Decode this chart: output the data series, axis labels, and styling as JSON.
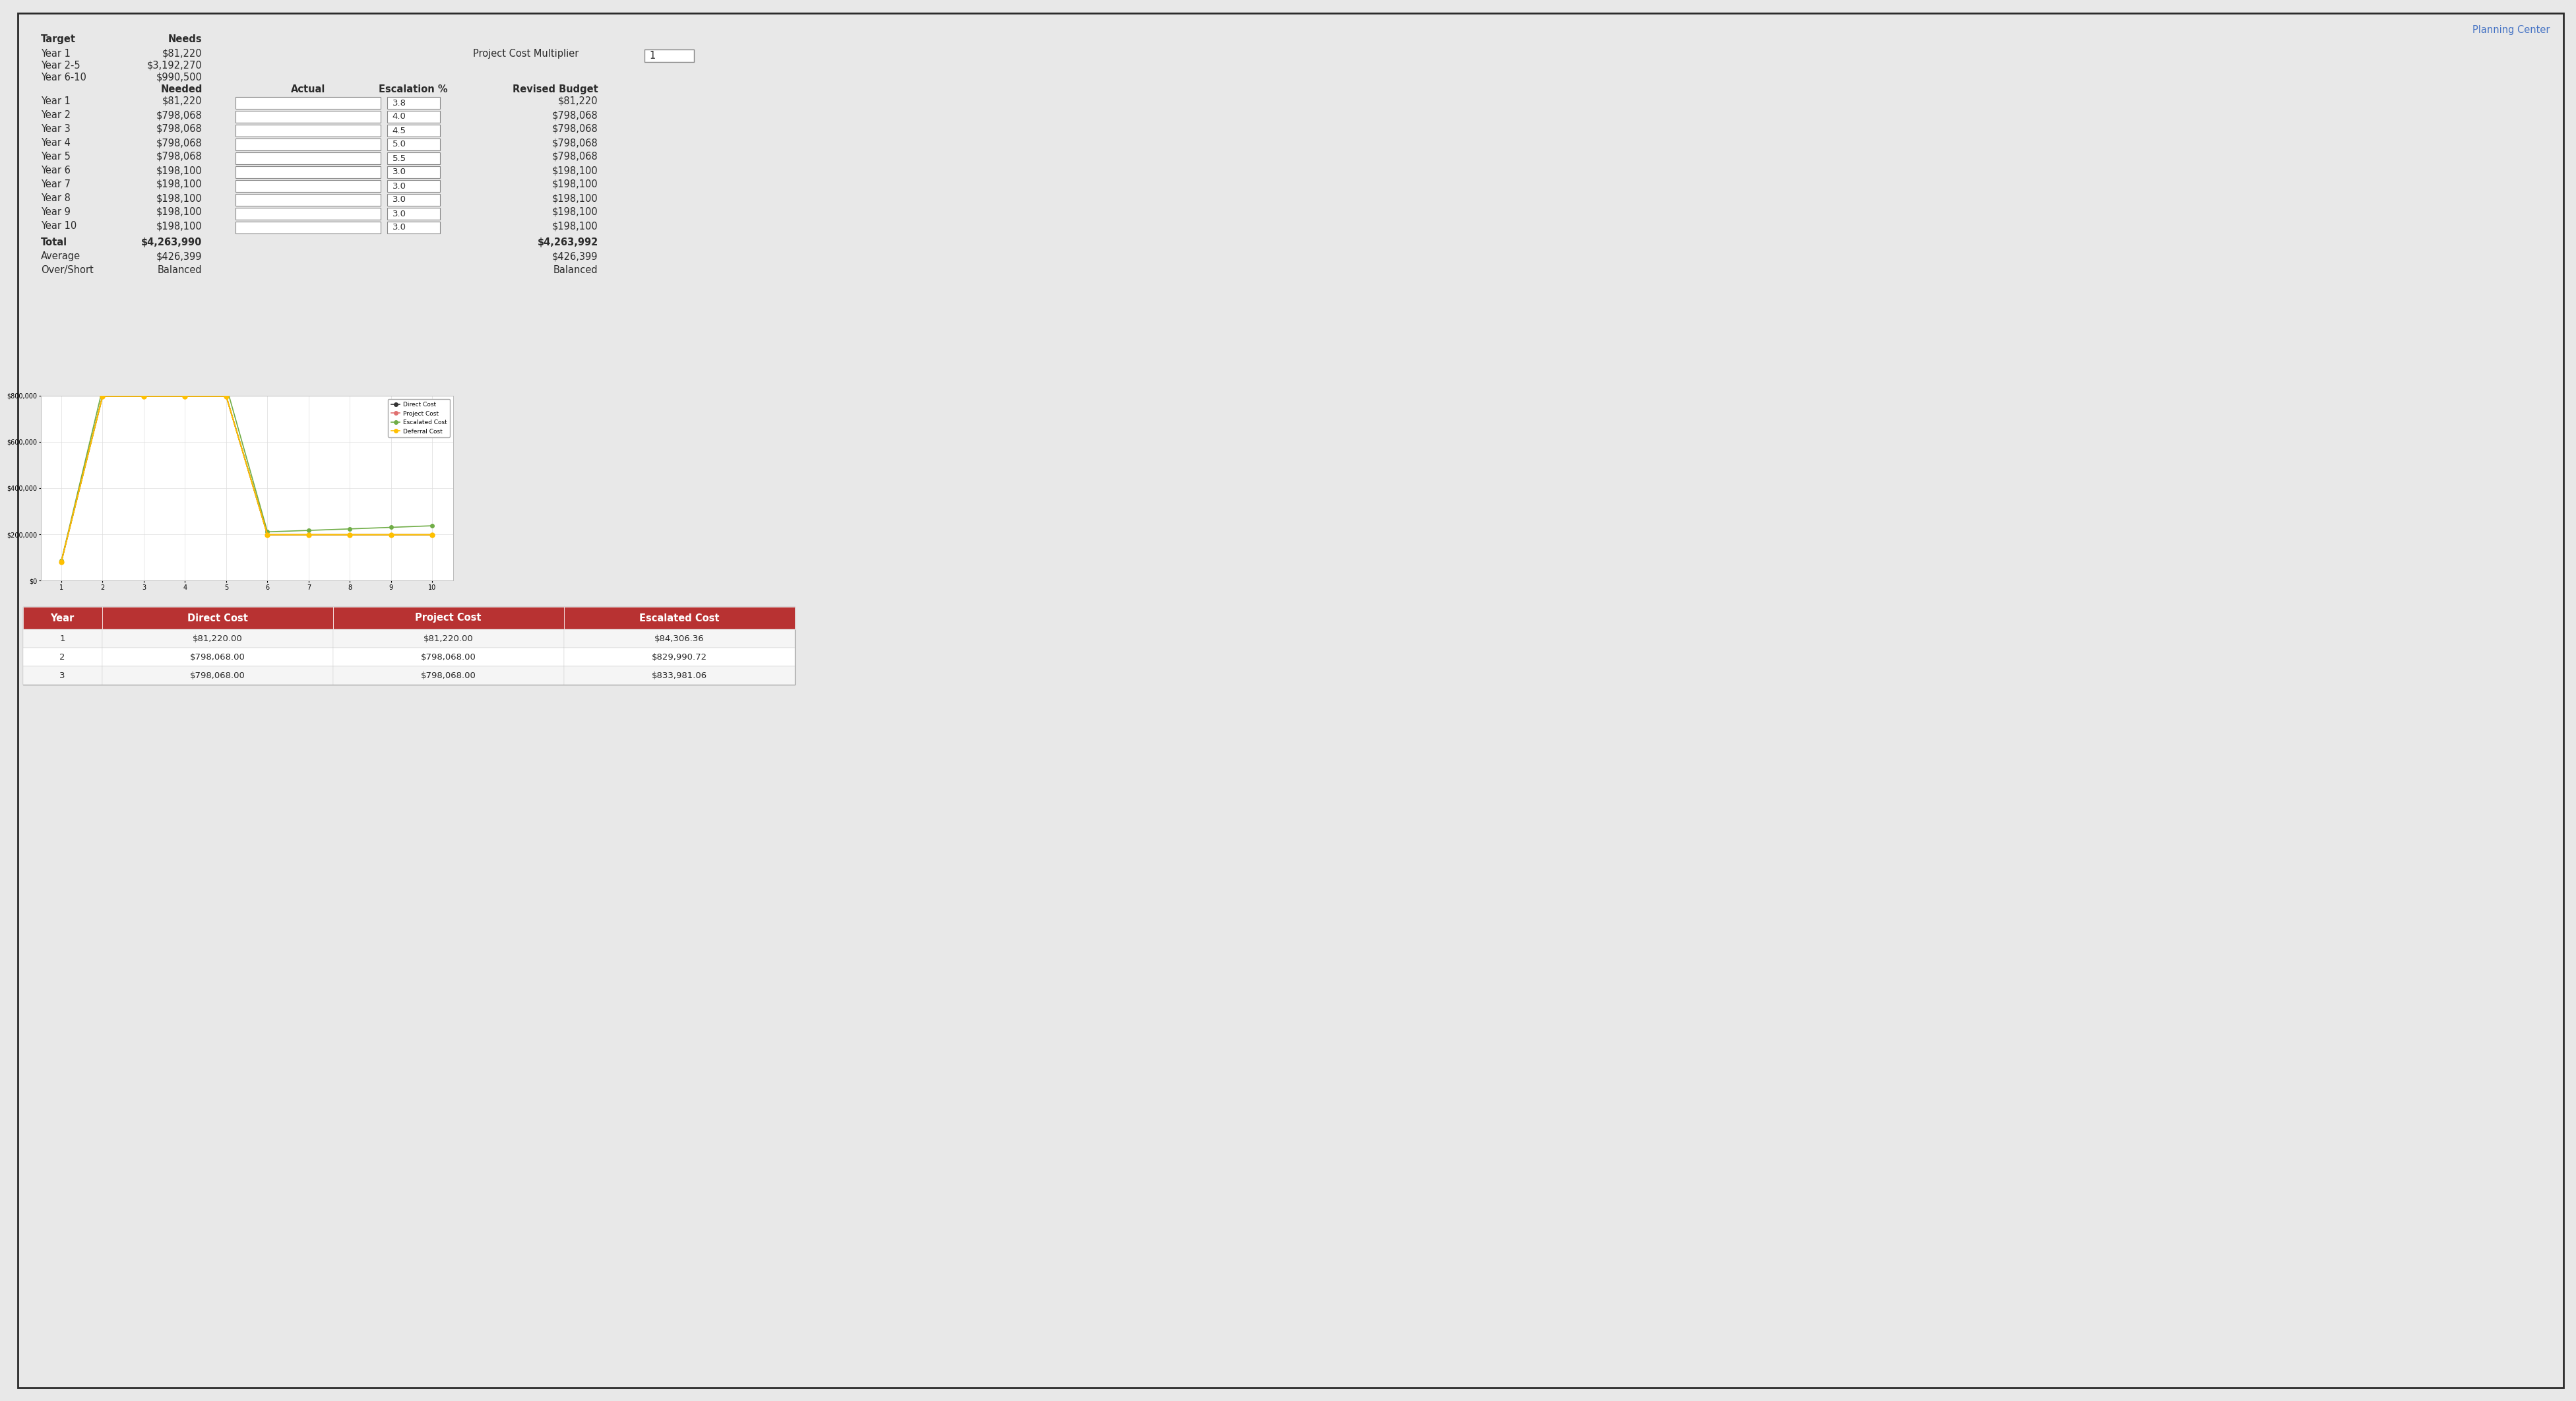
{
  "bg_color": "#e8e8e8",
  "border_color": "#2b2b2b",
  "text_color": "#2b2b2b",
  "planning_center_color": "#4472c4",
  "planning_center_text": "Planning Center",
  "top_label1": "Target",
  "top_label2": "Needs",
  "top_rows": [
    [
      "Year 1",
      "$81,220"
    ],
    [
      "Year 2-5",
      "$3,192,270"
    ],
    [
      "Year 6-10",
      "$990,500"
    ]
  ],
  "pcm_label": "Project Cost Multiplier",
  "pcm_value": "1",
  "mid_header_needed": "Needed",
  "mid_header_actual": "Actual",
  "mid_header_esc": "Escalation %",
  "mid_header_revised": "Revised Budget",
  "mid_rows": [
    [
      "Year 1",
      "$81,220",
      "3.8",
      "$81,220"
    ],
    [
      "Year 2",
      "$798,068",
      "4.0",
      "$798,068"
    ],
    [
      "Year 3",
      "$798,068",
      "4.5",
      "$798,068"
    ],
    [
      "Year 4",
      "$798,068",
      "5.0",
      "$798,068"
    ],
    [
      "Year 5",
      "$798,068",
      "5.5",
      "$798,068"
    ],
    [
      "Year 6",
      "$198,100",
      "3.0",
      "$198,100"
    ],
    [
      "Year 7",
      "$198,100",
      "3.0",
      "$198,100"
    ],
    [
      "Year 8",
      "$198,100",
      "3.0",
      "$198,100"
    ],
    [
      "Year 9",
      "$198,100",
      "3.0",
      "$198,100"
    ],
    [
      "Year 10",
      "$198,100",
      "3.0",
      "$198,100"
    ]
  ],
  "total_row": [
    "Total",
    "$4,263,990",
    "$4,263,992"
  ],
  "avg_row": [
    "Average",
    "$426,399",
    "$426,399"
  ],
  "over_row": [
    "Over/Short",
    "Balanced",
    "Balanced"
  ],
  "chart_x": [
    1,
    2,
    3,
    4,
    5,
    6,
    7,
    8,
    9,
    10
  ],
  "direct_cost": [
    81220,
    798068,
    798068,
    798068,
    798068,
    198100,
    198100,
    198100,
    198100,
    198100
  ],
  "project_cost": [
    81220,
    798068,
    798068,
    798068,
    798068,
    198100,
    198100,
    198100,
    198100,
    198100
  ],
  "escalated_cost": [
    84306,
    829991,
    833981,
    837971,
    841962,
    210486,
    216801,
    223305,
    230004,
    236904
  ],
  "deferral_cost": [
    81220,
    798068,
    798068,
    798068,
    798068,
    198100,
    198100,
    198100,
    198100,
    198100
  ],
  "direct_color": "#333333",
  "project_color": "#e07070",
  "escalated_color": "#70ad47",
  "deferral_color": "#ffc000",
  "chart_yticks": [
    0,
    200000,
    400000,
    600000,
    800000
  ],
  "chart_ytick_labels": [
    "$0",
    "$200,000",
    "$400,000",
    "$600,000",
    "$800,000"
  ],
  "bt_header_bg": "#b83232",
  "bt_header_color": "#ffffff",
  "bt_headers": [
    "Year",
    "Direct Cost",
    "Project Cost",
    "Escalated Cost"
  ],
  "bt_rows": [
    [
      "1",
      "$81,220.00",
      "$81,220.00",
      "$84,306.36"
    ],
    [
      "2",
      "$798,068.00",
      "$798,068.00",
      "$829,990.72"
    ],
    [
      "3",
      "$798,068.00",
      "$798,068.00",
      "$833,981.06"
    ]
  ]
}
